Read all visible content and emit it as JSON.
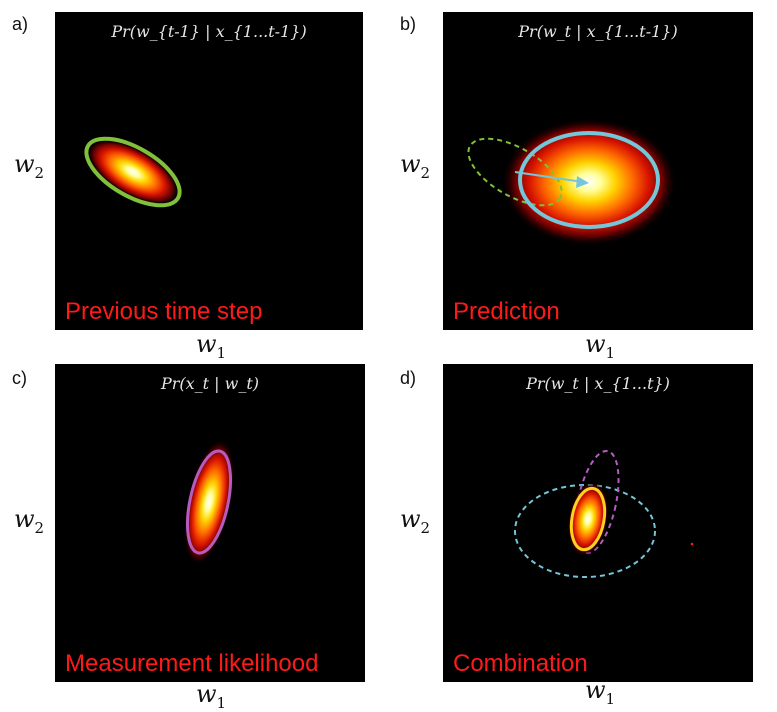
{
  "panels": [
    {
      "letter": "a)",
      "title": "Pr(w_{t-1} | x_{1...t-1})",
      "caption": "Previous time step"
    },
    {
      "letter": "b)",
      "title": "Pr(w_t | x_{1...t-1})",
      "caption": "Prediction"
    },
    {
      "letter": "c)",
      "title": "Pr(x_t | w_t)",
      "caption": "Measurement likelihood"
    },
    {
      "letter": "d)",
      "title": "Pr(w_t | x_{1...t})",
      "caption": "Combination"
    }
  ],
  "axis": {
    "x_symbol": "w",
    "x_sub": "1",
    "y_symbol": "w",
    "y_sub": "2"
  },
  "colors": {
    "background": "#000000",
    "caption": "#ff1a1a",
    "prior_ellipse": "#7fc13a",
    "prediction_ellipse": "#74c6d8",
    "likelihood_ellipse": "#b45cc0",
    "posterior_ellipse": "#ffd21f"
  }
}
